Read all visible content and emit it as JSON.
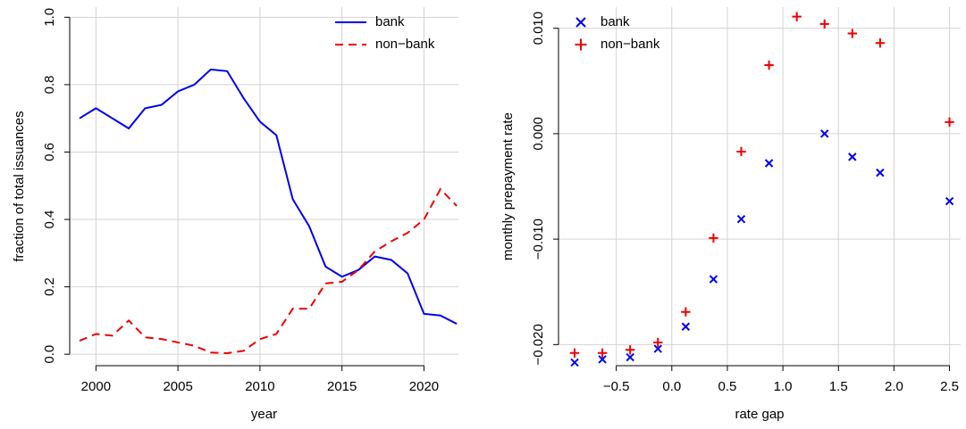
{
  "chart_data": [
    {
      "type": "line",
      "xlabel": "year",
      "ylabel": "fraction of total issuances",
      "x": [
        1999,
        2000,
        2001,
        2002,
        2003,
        2004,
        2005,
        2006,
        2007,
        2008,
        2009,
        2010,
        2011,
        2012,
        2013,
        2014,
        2015,
        2016,
        2017,
        2018,
        2019,
        2020,
        2021,
        2022
      ],
      "series": [
        {
          "name": "bank",
          "color": "#0000ee",
          "linestyle": "solid",
          "values": [
            0.7,
            0.73,
            0.7,
            0.67,
            0.73,
            0.74,
            0.78,
            0.8,
            0.845,
            0.84,
            0.76,
            0.69,
            0.65,
            0.46,
            0.38,
            0.26,
            0.23,
            0.25,
            0.29,
            0.28,
            0.24,
            0.12,
            0.115,
            0.09
          ]
        },
        {
          "name": "non−bank",
          "color": "#ee0000",
          "linestyle": "dashed",
          "values": [
            0.04,
            0.06,
            0.055,
            0.1,
            0.05,
            0.045,
            0.035,
            0.025,
            0.005,
            0.003,
            0.01,
            0.045,
            0.06,
            0.135,
            0.135,
            0.21,
            0.215,
            0.25,
            0.305,
            0.335,
            0.36,
            0.4,
            0.49,
            0.44
          ]
        }
      ],
      "xlim": [
        1998.4,
        2022.1
      ],
      "xticks": [
        2000,
        2005,
        2010,
        2015,
        2020
      ],
      "ylim": [
        -0.034,
        1.03
      ],
      "yticks": [
        {
          "value": 0,
          "label": "0.0"
        },
        {
          "value": 0.2,
          "label": "0.2"
        },
        {
          "value": 0.4,
          "label": "0.4"
        },
        {
          "value": 0.6,
          "label": "0.6"
        },
        {
          "value": 0.8,
          "label": "0.8"
        },
        {
          "value": 1,
          "label": "1.0"
        }
      ],
      "grid": true,
      "legend": "topright"
    },
    {
      "type": "scatter",
      "xlabel": "rate gap",
      "ylabel": "monthly prepayment rate",
      "x": [
        -0.875,
        -0.625,
        -0.375,
        -0.125,
        0.125,
        0.375,
        0.625,
        0.875,
        1.125,
        1.375,
        1.625,
        1.875,
        2.5
      ],
      "series": [
        {
          "name": "bank",
          "color": "#0000ee",
          "marker": "x",
          "values": [
            -0.0217,
            -0.0214,
            -0.0212,
            -0.0204,
            -0.0183,
            -0.0138,
            -0.0081,
            -0.0028,
            null,
            0.0,
            -0.0022,
            -0.0037,
            -0.0064
          ]
        },
        {
          "name": "non−bank",
          "color": "#ee0000",
          "marker": "+",
          "values": [
            -0.0208,
            -0.0208,
            -0.0205,
            -0.0198,
            -0.0169,
            -0.0099,
            -0.0017,
            0.0065,
            0.0111,
            0.0104,
            0.0095,
            0.0086,
            0.0011
          ]
        }
      ],
      "xlim": [
        -1.02,
        2.6
      ],
      "xticks": [
        {
          "value": -0.5,
          "label": "−0.5"
        },
        {
          "value": 0,
          "label": "0.0"
        },
        {
          "value": 0.5,
          "label": "0.5"
        },
        {
          "value": 1,
          "label": "1.0"
        },
        {
          "value": 1.5,
          "label": "1.5"
        },
        {
          "value": 2,
          "label": "2.0"
        },
        {
          "value": 2.5,
          "label": "2.5"
        }
      ],
      "ylim": [
        -0.022,
        0.012
      ],
      "yticks": [
        {
          "value": -0.02,
          "label": "−0.020"
        },
        {
          "value": -0.01,
          "label": "−0.010"
        },
        {
          "value": 0,
          "label": "0.000"
        },
        {
          "value": 0.01,
          "label": "0.010"
        }
      ],
      "grid": true,
      "legend": "topleft"
    }
  ]
}
